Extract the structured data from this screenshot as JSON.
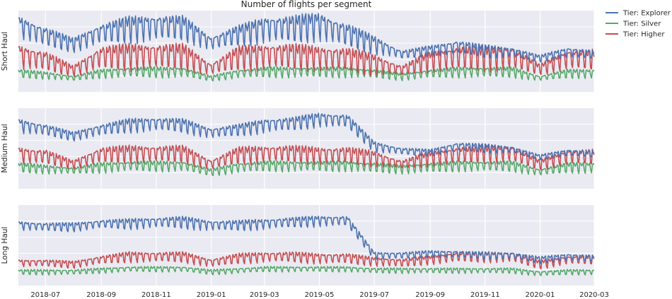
{
  "chart_data": {
    "type": "line",
    "title": "Number of flights per segment",
    "x_tick_labels": [
      "2018-07",
      "2018-09",
      "2018-11",
      "2019-01",
      "2019-03",
      "2019-05",
      "2019-07",
      "2019-09",
      "2019-11",
      "2020-01",
      "2020-03"
    ],
    "x_range": [
      "2018-06-01",
      "2020-03-01"
    ],
    "grid": true,
    "legend_position": "top-right",
    "legend": [
      {
        "name": "Tier: Explorer",
        "color": "#4c72b0"
      },
      {
        "name": "Tier: Silver",
        "color": "#55a868"
      },
      {
        "name": "Tier: Higher",
        "color": "#c44e52"
      }
    ],
    "y_tick_labels_shown": false,
    "note": "Values are approximate relative levels (0-100 per panel, no y-axis scale printed). Each series has a strong weekly oscillation; listed values are monthly envelope means and weekly amplitude.",
    "months": [
      "2018-06",
      "2018-07",
      "2018-08",
      "2018-09",
      "2018-10",
      "2018-11",
      "2018-12",
      "2019-01",
      "2019-02",
      "2019-03",
      "2019-04",
      "2019-05",
      "2019-06",
      "2019-07",
      "2019-08",
      "2019-09",
      "2019-10",
      "2019-11",
      "2019-12",
      "2020-01",
      "2020-02",
      "2020-03"
    ],
    "panels": [
      {
        "ylabel": "Short Haul",
        "series": [
          {
            "name": "Tier: Explorer",
            "color": "#4c72b0",
            "mean": [
              82,
              68,
              58,
              72,
              78,
              80,
              80,
              60,
              70,
              78,
              78,
              82,
              70,
              58,
              45,
              50,
              55,
              50,
              48,
              40,
              48,
              45
            ],
            "amplitude": [
              12,
              12,
              8,
              12,
              15,
              15,
              14,
              8,
              12,
              15,
              16,
              16,
              14,
              10,
              5,
              6,
              8,
              7,
              6,
              4,
              6,
              5
            ]
          },
          {
            "name": "Tier: Silver",
            "color": "#55a868",
            "mean": [
              20,
              18,
              14,
              20,
              22,
              22,
              22,
              14,
              20,
              22,
              22,
              22,
              22,
              20,
              16,
              20,
              22,
              22,
              22,
              14,
              20,
              20
            ],
            "amplitude": [
              5,
              4,
              3,
              5,
              6,
              6,
              6,
              3,
              5,
              6,
              6,
              6,
              6,
              5,
              4,
              5,
              6,
              6,
              6,
              3,
              5,
              5
            ]
          },
          {
            "name": "Tier: Higher",
            "color": "#c44e52",
            "mean": [
              42,
              36,
              24,
              40,
              42,
              42,
              42,
              26,
              40,
              42,
              42,
              40,
              38,
              32,
              24,
              36,
              40,
              40,
              40,
              26,
              38,
              38
            ],
            "amplitude": [
              14,
              12,
              6,
              14,
              15,
              15,
              15,
              7,
              14,
              15,
              15,
              14,
              14,
              12,
              6,
              12,
              14,
              14,
              14,
              6,
              12,
              12
            ]
          }
        ]
      },
      {
        "ylabel": "Medium Haul",
        "series": [
          {
            "name": "Tier: Explorer",
            "color": "#4c72b0",
            "mean": [
              80,
              74,
              66,
              74,
              80,
              82,
              80,
              70,
              74,
              80,
              82,
              88,
              86,
              52,
              46,
              44,
              52,
              50,
              48,
              38,
              44,
              42
            ],
            "amplitude": [
              8,
              7,
              5,
              7,
              8,
              8,
              8,
              6,
              7,
              8,
              8,
              8,
              8,
              6,
              4,
              4,
              5,
              5,
              4,
              3,
              4,
              4
            ]
          },
          {
            "name": "Tier: Silver",
            "color": "#55a868",
            "mean": [
              24,
              22,
              20,
              24,
              26,
              26,
              26,
              18,
              24,
              26,
              26,
              26,
              26,
              24,
              22,
              24,
              26,
              26,
              26,
              18,
              24,
              24
            ],
            "amplitude": [
              6,
              5,
              4,
              6,
              6,
              6,
              6,
              4,
              6,
              6,
              6,
              6,
              6,
              6,
              5,
              6,
              6,
              6,
              6,
              4,
              6,
              6
            ]
          },
          {
            "name": "Tier: Higher",
            "color": "#c44e52",
            "mean": [
              40,
              38,
              28,
              40,
              42,
              42,
              42,
              28,
              40,
              42,
              42,
              40,
              40,
              36,
              28,
              36,
              40,
              42,
              42,
              28,
              38,
              38
            ],
            "amplitude": [
              10,
              9,
              5,
              10,
              10,
              10,
              10,
              6,
              10,
              10,
              10,
              10,
              10,
              9,
              5,
              9,
              10,
              10,
              10,
              6,
              9,
              9
            ]
          }
        ]
      },
      {
        "ylabel": "Long Haul",
        "series": [
          {
            "name": "Tier: Explorer",
            "color": "#4c72b0",
            "mean": [
              76,
              74,
              74,
              78,
              78,
              80,
              80,
              76,
              76,
              78,
              80,
              82,
              82,
              36,
              36,
              38,
              38,
              36,
              36,
              30,
              34,
              32
            ],
            "amplitude": [
              5,
              5,
              5,
              5,
              6,
              6,
              7,
              6,
              6,
              6,
              6,
              6,
              6,
              4,
              4,
              4,
              4,
              4,
              4,
              4,
              4,
              4
            ]
          },
          {
            "name": "Tier: Silver",
            "color": "#55a868",
            "mean": [
              14,
              14,
              14,
              16,
              18,
              18,
              18,
              14,
              16,
              18,
              18,
              18,
              18,
              16,
              16,
              16,
              16,
              16,
              16,
              12,
              14,
              14
            ],
            "amplitude": [
              3,
              3,
              3,
              3,
              3,
              3,
              3,
              3,
              3,
              3,
              3,
              3,
              3,
              3,
              3,
              3,
              3,
              3,
              3,
              3,
              3,
              3
            ]
          },
          {
            "name": "Tier: Higher",
            "color": "#c44e52",
            "mean": [
              26,
              26,
              24,
              30,
              34,
              34,
              34,
              26,
              32,
              34,
              34,
              32,
              32,
              28,
              26,
              30,
              34,
              34,
              34,
              24,
              30,
              30
            ],
            "amplitude": [
              4,
              4,
              4,
              5,
              6,
              6,
              6,
              5,
              6,
              6,
              6,
              6,
              6,
              5,
              5,
              5,
              6,
              6,
              6,
              5,
              5,
              5
            ]
          }
        ]
      }
    ]
  }
}
